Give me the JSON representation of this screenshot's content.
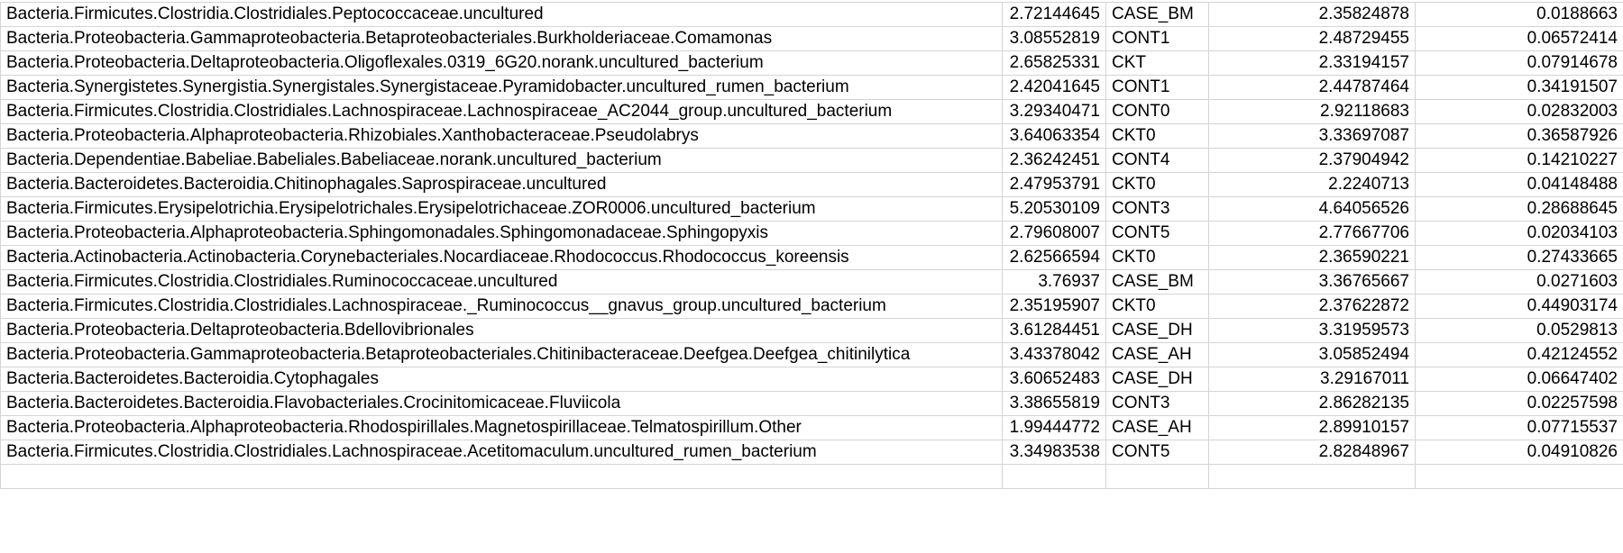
{
  "sheet": {
    "rows": [
      [
        "Bacteria.Firmicutes.Clostridia.Clostridiales.Peptococcaceae.uncultured",
        "2.72144645",
        "CASE_BM",
        "2.35824878",
        "0.0188663"
      ],
      [
        "Bacteria.Proteobacteria.Gammaproteobacteria.Betaproteobacteriales.Burkholderiaceae.Comamonas",
        "3.08552819",
        "CONT1",
        "2.48729455",
        "0.06572414"
      ],
      [
        "Bacteria.Proteobacteria.Deltaproteobacteria.Oligoflexales.0319_6G20.norank.uncultured_bacterium",
        "2.65825331",
        "CKT",
        "2.33194157",
        "0.07914678"
      ],
      [
        "Bacteria.Synergistetes.Synergistia.Synergistales.Synergistaceae.Pyramidobacter.uncultured_rumen_bacterium",
        "2.42041645",
        "CONT1",
        "2.44787464",
        "0.34191507"
      ],
      [
        "Bacteria.Firmicutes.Clostridia.Clostridiales.Lachnospiraceae.Lachnospiraceae_AC2044_group.uncultured_bacterium",
        "3.29340471",
        "CONT0",
        "2.92118683",
        "0.02832003"
      ],
      [
        "Bacteria.Proteobacteria.Alphaproteobacteria.Rhizobiales.Xanthobacteraceae.Pseudolabrys",
        "3.64063354",
        "CKT0",
        "3.33697087",
        "0.36587926"
      ],
      [
        "Bacteria.Dependentiae.Babeliae.Babeliales.Babeliaceae.norank.uncultured_bacterium",
        "2.36242451",
        "CONT4",
        "2.37904942",
        "0.14210227"
      ],
      [
        "Bacteria.Bacteroidetes.Bacteroidia.Chitinophagales.Saprospiraceae.uncultured",
        "2.47953791",
        "CKT0",
        "2.2240713",
        "0.04148488"
      ],
      [
        "Bacteria.Firmicutes.Erysipelotrichia.Erysipelotrichales.Erysipelotrichaceae.ZOR0006.uncultured_bacterium",
        "5.20530109",
        "CONT3",
        "4.64056526",
        "0.28688645"
      ],
      [
        "Bacteria.Proteobacteria.Alphaproteobacteria.Sphingomonadales.Sphingomonadaceae.Sphingopyxis",
        "2.79608007",
        "CONT5",
        "2.77667706",
        "0.02034103"
      ],
      [
        "Bacteria.Actinobacteria.Actinobacteria.Corynebacteriales.Nocardiaceae.Rhodococcus.Rhodococcus_koreensis",
        "2.62566594",
        "CKT0",
        "2.36590221",
        "0.27433665"
      ],
      [
        "Bacteria.Firmicutes.Clostridia.Clostridiales.Ruminococcaceae.uncultured",
        "3.76937",
        "CASE_BM",
        "3.36765667",
        "0.0271603"
      ],
      [
        "Bacteria.Firmicutes.Clostridia.Clostridiales.Lachnospiraceae._Ruminococcus__gnavus_group.uncultured_bacterium",
        "2.35195907",
        "CKT0",
        "2.37622872",
        "0.44903174"
      ],
      [
        "Bacteria.Proteobacteria.Deltaproteobacteria.Bdellovibrionales",
        "3.61284451",
        "CASE_DH",
        "3.31959573",
        "0.0529813"
      ],
      [
        "Bacteria.Proteobacteria.Gammaproteobacteria.Betaproteobacteriales.Chitinibacteraceae.Deefgea.Deefgea_chitinilytica",
        "3.43378042",
        "CASE_AH",
        "3.05852494",
        "0.42124552"
      ],
      [
        "Bacteria.Bacteroidetes.Bacteroidia.Cytophagales",
        "3.60652483",
        "CASE_DH",
        "3.29167011",
        "0.06647402"
      ],
      [
        "Bacteria.Bacteroidetes.Bacteroidia.Flavobacteriales.Crocinitomicaceae.Fluviicola",
        "3.38655819",
        "CONT3",
        "2.86282135",
        "0.02257598"
      ],
      [
        "Bacteria.Proteobacteria.Alphaproteobacteria.Rhodospirillales.Magnetospirillaceae.Telmatospirillum.Other",
        "1.99444772",
        "CASE_AH",
        "2.89910157",
        "0.07715537"
      ],
      [
        "Bacteria.Firmicutes.Clostridia.Clostridiales.Lachnospiraceae.Acetitomaculum.uncultured_rumen_bacterium",
        "3.34983538",
        "CONT5",
        "2.82848967",
        "0.04910826"
      ],
      [
        "",
        "",
        "",
        "",
        ""
      ]
    ]
  }
}
